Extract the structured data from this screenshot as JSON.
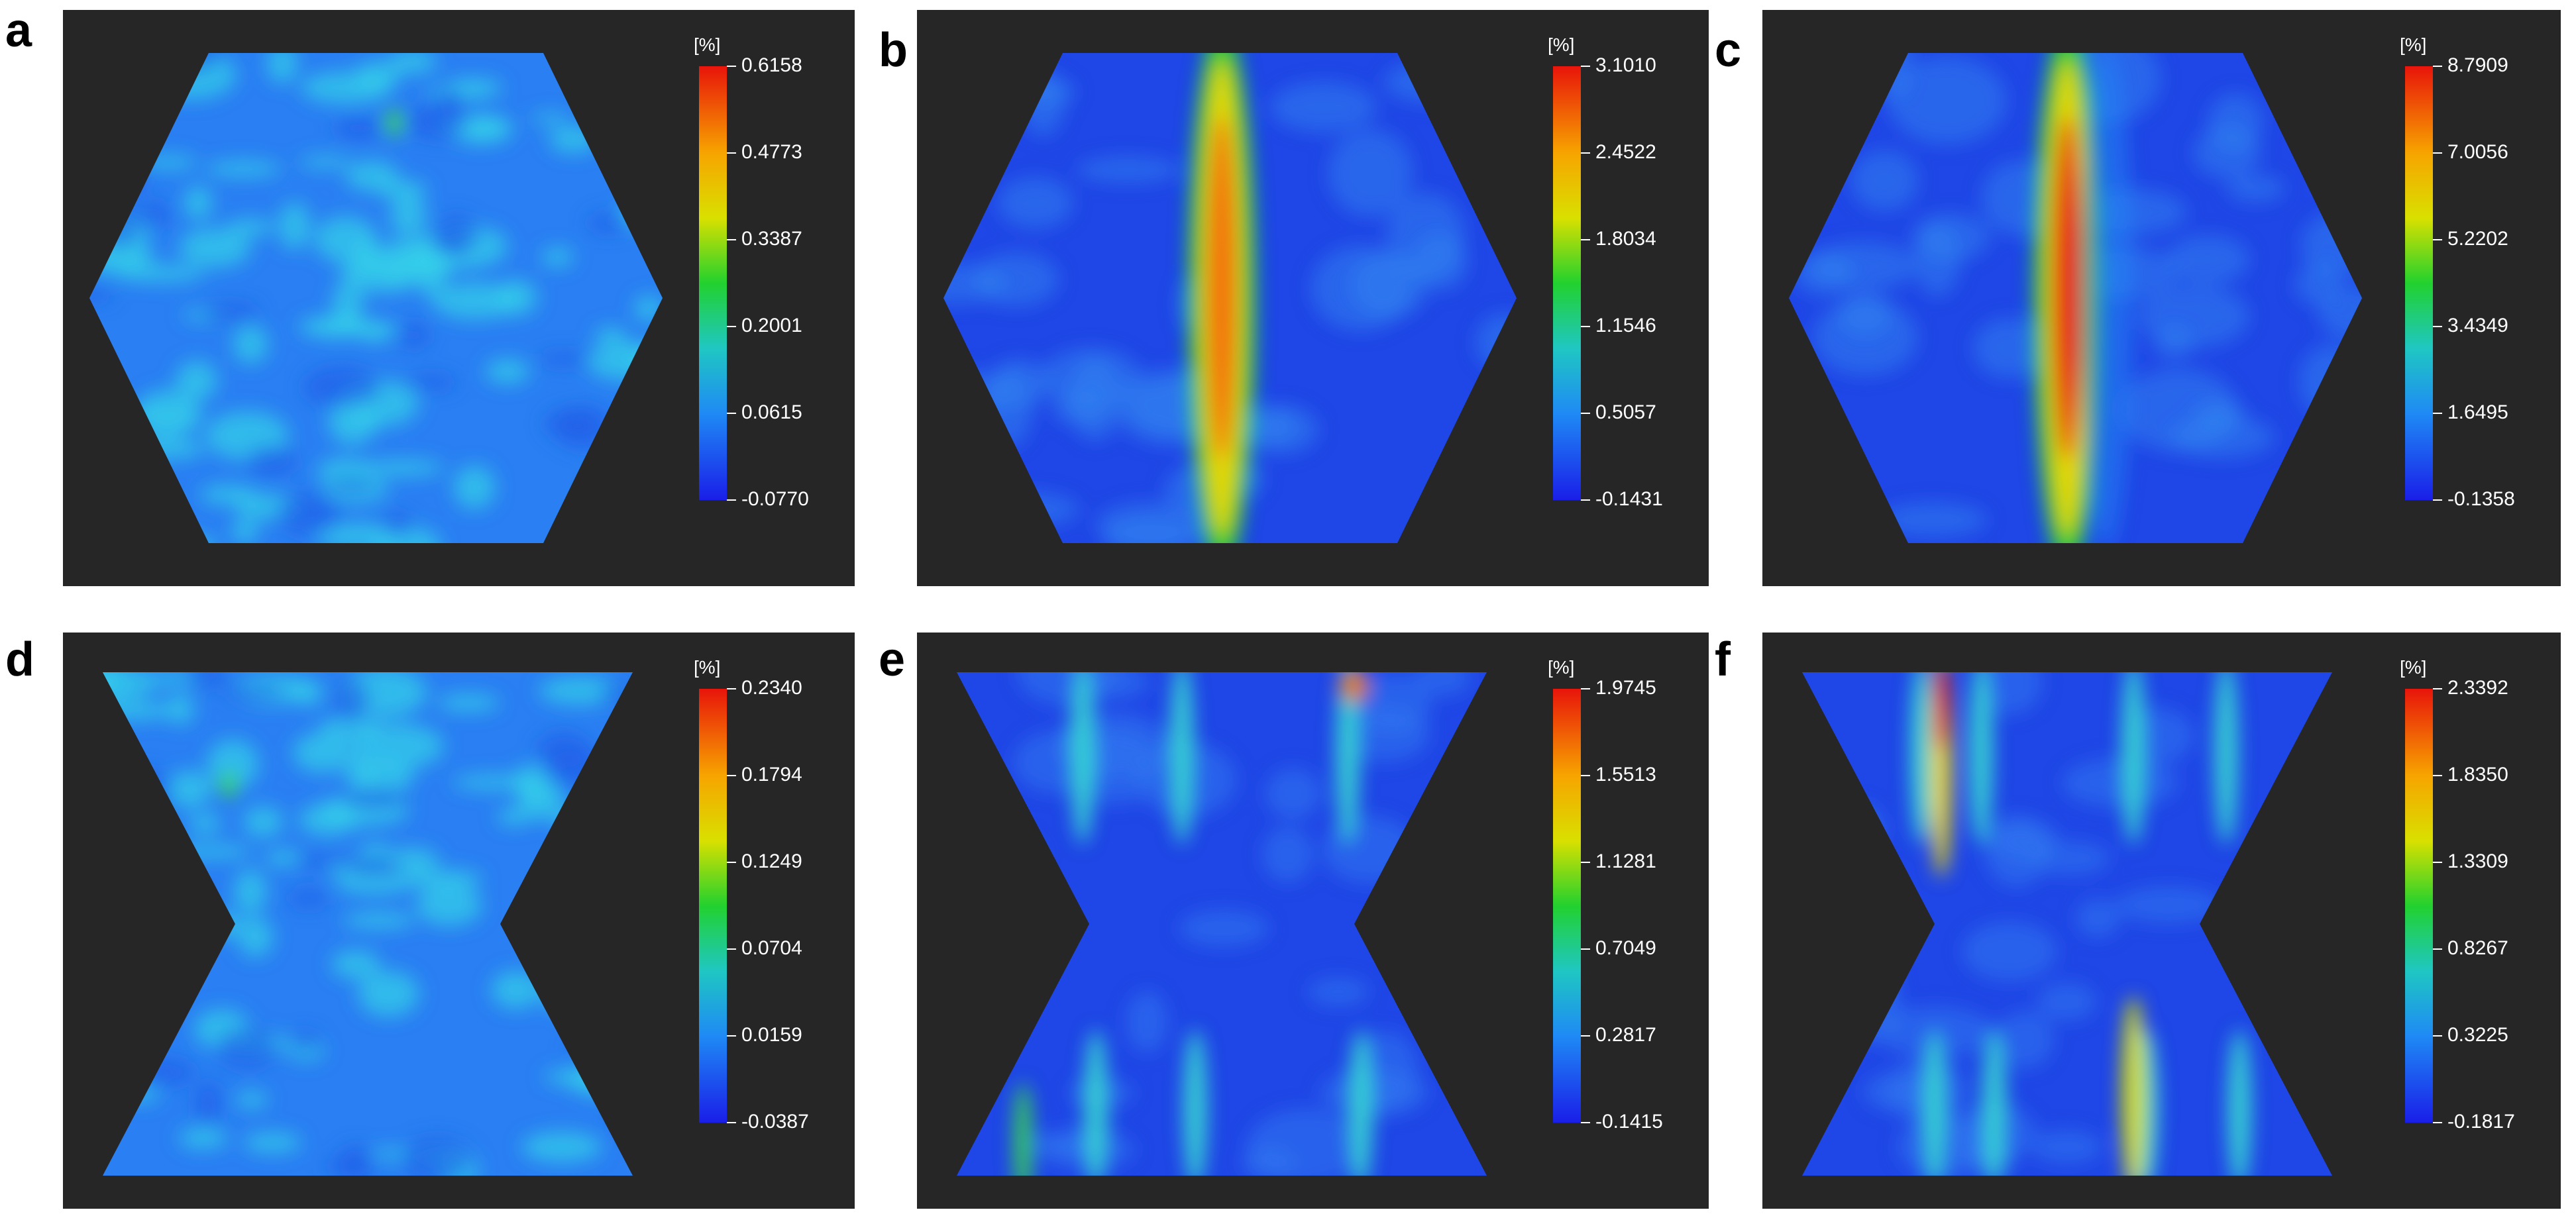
{
  "figure": {
    "panels": [
      {
        "letter": "a",
        "unit": "[%]",
        "shape": "hexagon",
        "field": "uniform",
        "ticks": [
          "0.6158",
          "0.4773",
          "0.3387",
          "0.2001",
          "0.0615",
          "-0.0770"
        ]
      },
      {
        "letter": "b",
        "unit": "[%]",
        "shape": "hexagon",
        "field": "band",
        "ticks": [
          "3.1010",
          "2.4522",
          "1.8034",
          "1.1546",
          "0.5057",
          "-0.1431"
        ]
      },
      {
        "letter": "c",
        "unit": "[%]",
        "shape": "hexagon",
        "field": "band-strong",
        "ticks": [
          "8.7909",
          "7.0056",
          "5.2202",
          "3.4349",
          "1.6495",
          "-0.1358"
        ]
      },
      {
        "letter": "d",
        "unit": "[%]",
        "shape": "bowtie",
        "field": "uniform",
        "ticks": [
          "0.2340",
          "0.1794",
          "0.1249",
          "0.0704",
          "0.0159",
          "-0.0387"
        ]
      },
      {
        "letter": "e",
        "unit": "[%]",
        "shape": "bowtie",
        "field": "streaks",
        "ticks": [
          "1.9745",
          "1.5513",
          "1.1281",
          "0.7049",
          "0.2817",
          "-0.1415"
        ]
      },
      {
        "letter": "f",
        "unit": "[%]",
        "shape": "bowtie",
        "field": "streaks-strong",
        "ticks": [
          "2.3392",
          "1.8350",
          "1.3309",
          "0.8267",
          "0.3225",
          "-0.1817"
        ]
      }
    ],
    "colors": {
      "background": "#262626",
      "low": "#1a1ee8",
      "mid": "#22d12e",
      "high": "#e8140a"
    }
  }
}
